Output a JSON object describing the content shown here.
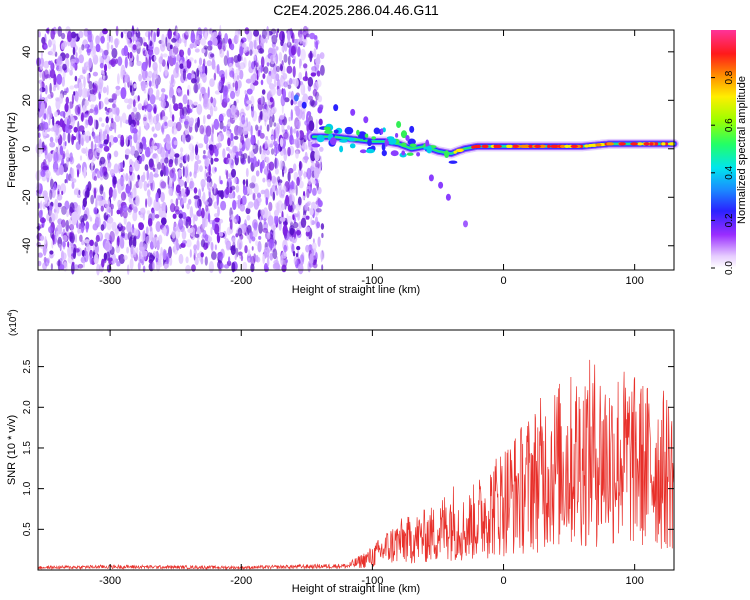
{
  "title": "C2E4.2025.286.04.46.G11",
  "colors": {
    "line": "#e8302a",
    "scatter": "#7a1fe0",
    "axis": "#000000"
  },
  "chart_data": [
    {
      "type": "heatmap",
      "title": "C2E4.2025.286.04.46.G11",
      "xlabel": "Height of straight line (km)",
      "ylabel": "Frequency (Hz)",
      "xlim": [
        -355,
        130
      ],
      "ylim": [
        -50,
        49
      ],
      "xticks": [
        -300,
        -200,
        -100,
        0,
        100
      ],
      "yticks": [
        -40,
        -20,
        0,
        20,
        40
      ],
      "noise_region_x": [
        -355,
        -138
      ],
      "signal_track": {
        "x": [
          -145,
          -130,
          -115,
          -100,
          -90,
          -80,
          -70,
          -60,
          -50,
          -40,
          -30,
          -20,
          0,
          20,
          40,
          60,
          80,
          100,
          120,
          130
        ],
        "y": [
          5,
          5,
          4,
          3,
          3,
          2,
          0,
          1,
          -1,
          -2,
          0,
          1,
          1,
          1,
          1,
          1,
          2,
          2,
          2,
          2
        ]
      },
      "colorbar": {
        "label": "Normalized spectral amplitude",
        "range": [
          0,
          1
        ],
        "ticks": [
          "0.0",
          "0.2",
          "0.4",
          "0.6",
          "0.8"
        ]
      }
    },
    {
      "type": "line",
      "xlabel": "Height of straight line (km)",
      "ylabel": "SNR (10 * v/v)",
      "y_multiplier": "(x10",
      "y_multiplier_exp": "4",
      "xlim": [
        -355,
        130
      ],
      "ylim": [
        0,
        2.95
      ],
      "xticks": [
        -300,
        -200,
        -100,
        0,
        100
      ],
      "yticks": [
        "0.5",
        "1.0",
        "1.5",
        "2.0",
        "2.5"
      ],
      "series": [
        {
          "name": "SNR",
          "x": [
            -355,
            -300,
            -200,
            -120,
            -110,
            -100,
            -90,
            -80,
            -70,
            -60,
            -50,
            -45,
            -40,
            -30,
            -20,
            -10,
            0,
            10,
            20,
            30,
            40,
            50,
            60,
            70,
            80,
            90,
            100,
            110,
            120,
            130
          ],
          "y": [
            0.03,
            0.04,
            0.03,
            0.05,
            0.12,
            0.2,
            0.32,
            0.42,
            0.45,
            0.5,
            0.55,
            0.65,
            0.75,
            0.6,
            0.75,
            0.9,
            1.05,
            1.15,
            1.3,
            1.45,
            1.55,
            1.6,
            1.7,
            1.75,
            1.65,
            1.7,
            1.6,
            1.55,
            1.5,
            1.45
          ]
        }
      ]
    }
  ]
}
